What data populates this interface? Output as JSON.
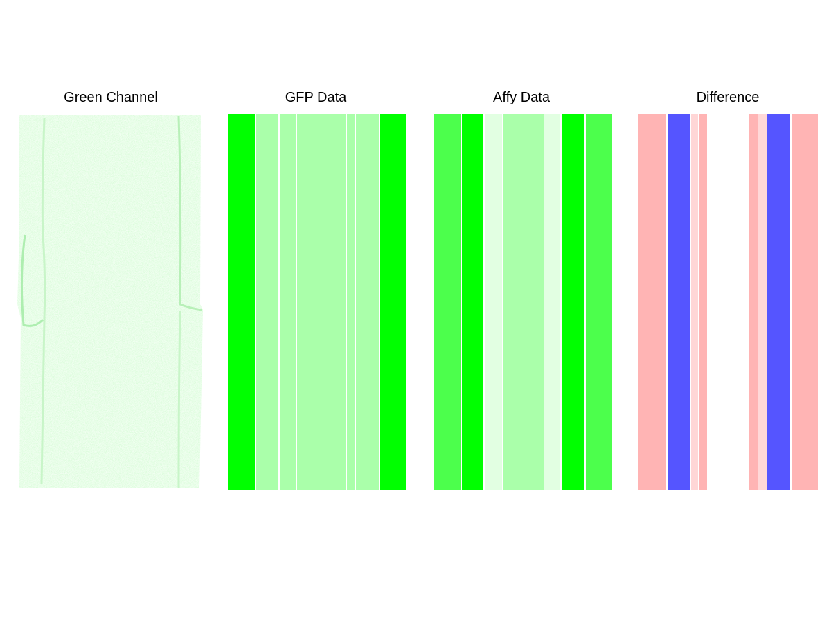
{
  "panels": [
    {
      "title": "Green Channel"
    },
    {
      "title": "GFP Data"
    },
    {
      "title": "Affy Data"
    },
    {
      "title": "Difference"
    }
  ]
}
